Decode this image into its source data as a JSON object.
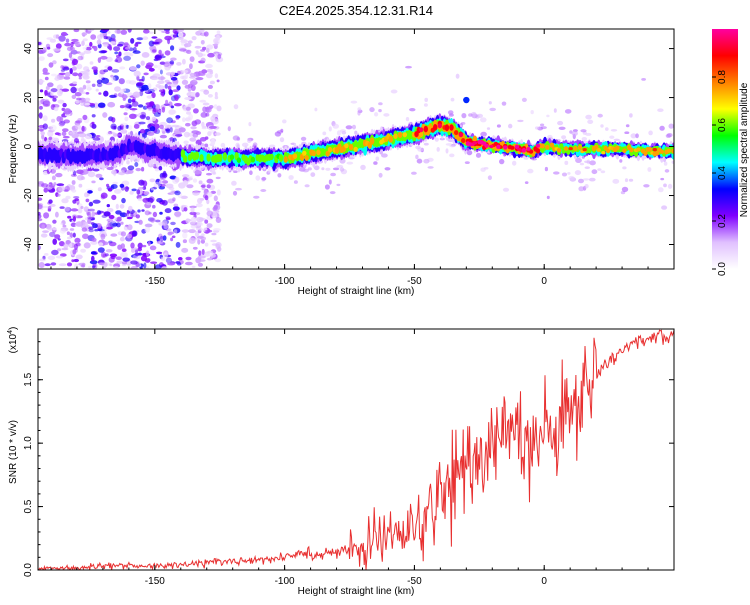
{
  "title": "C2E4.2025.354.12.31.R14",
  "chart_data": [
    {
      "type": "heatmap",
      "title": "C2E4.2025.354.12.31.R14",
      "xlabel": "Height of straight line (km)",
      "ylabel": "Frequency (Hz)",
      "xlim": [
        -195,
        50
      ],
      "ylim": [
        -50,
        48
      ],
      "x_ticks": [
        -150,
        -100,
        -50,
        0
      ],
      "x_tick_labels": [
        "-150",
        "-100",
        "-50",
        "0"
      ],
      "y_ticks": [
        -40,
        -20,
        0,
        20,
        40
      ],
      "y_tick_labels": [
        "-40",
        "-20",
        "0",
        "20",
        "40"
      ],
      "colorbar": {
        "label": "Normalized spectral amplitude",
        "range": [
          0.0,
          1.0
        ],
        "ticks": [
          0.0,
          0.2,
          0.4,
          0.6,
          0.8
        ],
        "tick_labels": [
          "0.0",
          "0.2",
          "0.4",
          "0.6",
          "0.8"
        ],
        "colormap": [
          "#ffffff",
          "#e0c0ff",
          "#7f00ff",
          "#0000ff",
          "#00ffff",
          "#00ff00",
          "#ffff00",
          "#ff8000",
          "#ff0000",
          "#ff00a0"
        ]
      },
      "ridge_centerline": {
        "x": [
          -195,
          -180,
          -165,
          -160,
          -140,
          -120,
          -100,
          -80,
          -60,
          -50,
          -40,
          -35,
          -30,
          -25,
          -15,
          -5,
          0,
          10,
          20,
          30,
          40,
          50
        ],
        "y": [
          -3,
          -4,
          -3,
          0,
          -4,
          -5,
          -5,
          -1,
          3,
          5,
          9,
          7,
          2,
          1,
          0,
          -2,
          0,
          -1,
          -1,
          -1,
          -2,
          -2
        ]
      },
      "ridge_segments": [
        {
          "x0": -195,
          "x1": -140,
          "amplitude": 0.3,
          "halfwidth_hz": 4
        },
        {
          "x0": -140,
          "x1": -100,
          "amplitude": 0.6,
          "halfwidth_hz": 3
        },
        {
          "x0": -100,
          "x1": -50,
          "amplitude": 0.7,
          "halfwidth_hz": 3
        },
        {
          "x0": -50,
          "x1": -30,
          "amplitude": 0.85,
          "halfwidth_hz": 3
        },
        {
          "x0": -30,
          "x1": 0,
          "amplitude": 0.95,
          "halfwidth_hz": 2
        },
        {
          "x0": 0,
          "x1": 50,
          "amplitude": 0.75,
          "halfwidth_hz": 2
        }
      ],
      "noise_region": {
        "x": [
          -195,
          -125
        ],
        "y": [
          -50,
          48
        ]
      },
      "isolated_blob": {
        "x": -30,
        "y": 19,
        "amplitude": 0.35
      }
    },
    {
      "type": "line",
      "xlabel": "Height of straight line (km)",
      "ylabel": "SNR (10 * v/v)",
      "multiplier_label": "(x10",
      "multiplier_exponent": "4",
      "multiplier_close": ")",
      "xlim": [
        -195,
        50
      ],
      "ylim": [
        0,
        1.9
      ],
      "x_ticks": [
        -150,
        -100,
        -50,
        0
      ],
      "x_tick_labels": [
        "-150",
        "-100",
        "-50",
        "0"
      ],
      "y_ticks": [
        0.0,
        0.5,
        1.0,
        1.5
      ],
      "y_tick_labels": [
        "0.0",
        "0.5",
        "1.0",
        "1.5"
      ],
      "color": "#e83030",
      "series": [
        {
          "name": "SNR",
          "x": [
            -195,
            -180,
            -165,
            -150,
            -140,
            -130,
            -120,
            -110,
            -100,
            -90,
            -80,
            -75,
            -70,
            -65,
            -60,
            -55,
            -50,
            -45,
            -40,
            -35,
            -30,
            -25,
            -20,
            -15,
            -10,
            -5,
            0,
            5,
            10,
            15,
            20,
            25,
            30,
            35,
            40,
            45,
            50
          ],
          "values": [
            0.01,
            0.02,
            0.04,
            0.03,
            0.04,
            0.06,
            0.07,
            0.08,
            0.1,
            0.12,
            0.15,
            0.18,
            0.2,
            0.25,
            0.3,
            0.32,
            0.3,
            0.45,
            0.55,
            0.7,
            0.85,
            0.8,
            1.0,
            1.05,
            1.1,
            1.05,
            1.1,
            1.2,
            1.3,
            1.4,
            1.55,
            1.65,
            1.75,
            1.8,
            1.83,
            1.85,
            1.86
          ]
        }
      ]
    }
  ]
}
